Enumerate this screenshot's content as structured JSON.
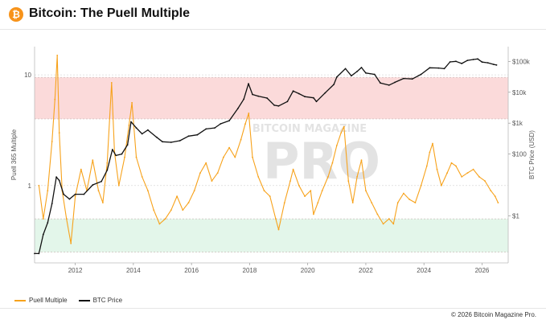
{
  "header": {
    "logo_glyph": "₿",
    "title": "Bitcoin: The Puell Multiple"
  },
  "watermark": {
    "line1": "BITCOIN MAGAZINE",
    "line2": "PRO"
  },
  "footer": {
    "copyright": "© 2026 Bitcoin Magazine Pro."
  },
  "colors": {
    "puell": "#f7a21b",
    "btc": "#111111",
    "red_band": "#fbdada",
    "green_band": "#e3f6ea",
    "accent": "#f7931a"
  },
  "chart_data": {
    "type": "line",
    "title": "Bitcoin: The Puell Multiple",
    "xlim": [
      2010.6,
      2026.9
    ],
    "x_ticks": [
      2012,
      2014,
      2016,
      2018,
      2020,
      2022,
      2024,
      2026
    ],
    "x_tick_labels": [
      "2012",
      "2014",
      "2016",
      "2018",
      "2020",
      "2022",
      "2024",
      "2026"
    ],
    "left_axis": {
      "label": "Puell 365 Multiple",
      "scale": "log",
      "range": [
        0.2,
        18
      ],
      "ticks": [
        1,
        10
      ],
      "tick_labels": [
        "1",
        "10"
      ]
    },
    "right_axis": {
      "label": "BTC Price (USD)",
      "scale": "log",
      "range": [
        0.03,
        300000
      ],
      "ticks": [
        1,
        100,
        1000,
        10000,
        100000
      ],
      "tick_labels": [
        "$1",
        "$100",
        "$1k",
        "$10k",
        "$100k"
      ]
    },
    "bands": [
      {
        "name": "high",
        "from": 4,
        "to": 9.5,
        "axis": "left",
        "color": "#fbdada"
      },
      {
        "name": "low",
        "from": 0.25,
        "to": 0.5,
        "axis": "left",
        "color": "#e3f6ea"
      }
    ],
    "legend": {
      "placement": "bottom-left",
      "entries": [
        "Puell Multiple",
        "BTC Price"
      ]
    },
    "series": [
      {
        "name": "Puell Multiple",
        "axis": "left",
        "color": "#f7a21b",
        "x": [
          2010.75,
          2010.9,
          2011.05,
          2011.2,
          2011.3,
          2011.38,
          2011.45,
          2011.55,
          2011.7,
          2011.85,
          2012.0,
          2012.2,
          2012.4,
          2012.6,
          2012.8,
          2012.95,
          2013.1,
          2013.25,
          2013.35,
          2013.5,
          2013.7,
          2013.85,
          2013.95,
          2014.1,
          2014.3,
          2014.5,
          2014.7,
          2014.9,
          2015.1,
          2015.3,
          2015.5,
          2015.7,
          2015.9,
          2016.1,
          2016.3,
          2016.5,
          2016.7,
          2016.9,
          2017.1,
          2017.3,
          2017.5,
          2017.7,
          2017.85,
          2017.97,
          2018.1,
          2018.3,
          2018.5,
          2018.7,
          2018.9,
          2019.0,
          2019.2,
          2019.4,
          2019.5,
          2019.7,
          2019.9,
          2020.1,
          2020.2,
          2020.35,
          2020.5,
          2020.7,
          2020.85,
          2021.0,
          2021.15,
          2021.25,
          2021.4,
          2021.55,
          2021.7,
          2021.85,
          2022.0,
          2022.2,
          2022.4,
          2022.6,
          2022.8,
          2022.95,
          2023.1,
          2023.3,
          2023.5,
          2023.7,
          2023.9,
          2024.1,
          2024.2,
          2024.3,
          2024.45,
          2024.6,
          2024.8,
          2024.95,
          2025.1,
          2025.3,
          2025.5,
          2025.7,
          2025.9,
          2026.1,
          2026.3,
          2026.45,
          2026.55
        ],
        "y": [
          1.0,
          0.5,
          0.9,
          2.5,
          6.0,
          15.0,
          3.0,
          0.9,
          0.5,
          0.3,
          0.8,
          1.4,
          0.9,
          1.7,
          0.9,
          0.7,
          1.6,
          8.5,
          2.0,
          1.0,
          1.8,
          3.5,
          5.6,
          1.8,
          1.2,
          0.9,
          0.6,
          0.45,
          0.5,
          0.6,
          0.8,
          0.6,
          0.7,
          0.9,
          1.3,
          1.6,
          1.1,
          1.3,
          1.8,
          2.2,
          1.8,
          2.6,
          3.6,
          4.5,
          1.8,
          1.2,
          0.9,
          0.8,
          0.5,
          0.4,
          0.7,
          1.1,
          1.4,
          1.0,
          0.8,
          0.9,
          0.55,
          0.7,
          0.9,
          1.2,
          1.6,
          2.3,
          3.0,
          3.4,
          1.1,
          0.7,
          1.2,
          1.7,
          0.9,
          0.7,
          0.55,
          0.45,
          0.5,
          0.45,
          0.7,
          0.85,
          0.75,
          0.7,
          1.0,
          1.5,
          2.0,
          2.4,
          1.4,
          1.0,
          1.3,
          1.6,
          1.5,
          1.2,
          1.3,
          1.4,
          1.2,
          1.1,
          0.9,
          0.8,
          0.7
        ]
      },
      {
        "name": "BTC Price",
        "axis": "right",
        "color": "#111111",
        "x": [
          2010.6,
          2010.75,
          2010.9,
          2011.05,
          2011.2,
          2011.35,
          2011.45,
          2011.6,
          2011.8,
          2012.0,
          2012.3,
          2012.6,
          2012.9,
          2013.1,
          2013.28,
          2013.4,
          2013.6,
          2013.8,
          2013.92,
          2014.1,
          2014.3,
          2014.5,
          2014.8,
          2015.0,
          2015.3,
          2015.6,
          2015.9,
          2016.2,
          2016.5,
          2016.8,
          2017.0,
          2017.3,
          2017.6,
          2017.8,
          2017.96,
          2018.1,
          2018.3,
          2018.6,
          2018.85,
          2019.0,
          2019.3,
          2019.5,
          2019.7,
          2019.9,
          2020.2,
          2020.3,
          2020.6,
          2020.9,
          2021.0,
          2021.3,
          2021.5,
          2021.7,
          2021.85,
          2022.0,
          2022.3,
          2022.5,
          2022.8,
          2023.0,
          2023.3,
          2023.6,
          2023.9,
          2024.2,
          2024.5,
          2024.7,
          2024.9,
          2025.1,
          2025.3,
          2025.5,
          2025.7,
          2025.85,
          2026.0,
          2026.2,
          2026.4,
          2026.5
        ],
        "y": [
          0.06,
          0.06,
          0.25,
          0.6,
          2.5,
          18,
          14,
          5,
          3.5,
          5,
          5,
          10,
          13,
          30,
          140,
          90,
          100,
          200,
          1100,
          700,
          450,
          600,
          350,
          250,
          240,
          270,
          380,
          420,
          650,
          700,
          950,
          1200,
          3000,
          6000,
          19000,
          8500,
          7500,
          6500,
          3800,
          3600,
          5000,
          11000,
          9000,
          7200,
          6600,
          5000,
          9500,
          18000,
          31000,
          58000,
          34000,
          47000,
          63000,
          42000,
          38000,
          20000,
          17000,
          21000,
          28000,
          27000,
          38000,
          62000,
          61000,
          58000,
          96000,
          100000,
          85000,
          108000,
          115000,
          120000,
          95000,
          90000,
          80000,
          76000
        ]
      }
    ]
  }
}
